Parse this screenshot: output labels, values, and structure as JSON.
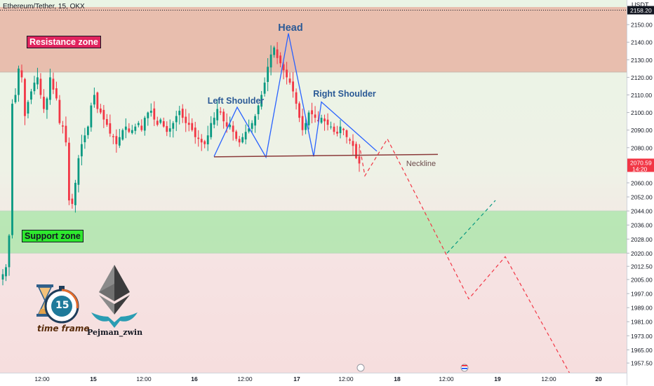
{
  "header": {
    "symbol": "Ethereum/Tether, 15, OKX",
    "currency": "USDT"
  },
  "zones": {
    "resistance_label": "Resistance zone",
    "support_label": "Support zone"
  },
  "annotations": {
    "head": "Head",
    "left_shoulder": "Left Shoulder",
    "right_shoulder": "Right Shoulder",
    "neckline": "Neckline"
  },
  "logos": {
    "timeframe_number": "15",
    "timeframe_text": "time frame",
    "author": "Pejman_zwin"
  },
  "current_price": {
    "value": "2070.59",
    "countdown": "14:20"
  },
  "colors": {
    "up": "#089981",
    "down": "#f23645",
    "resistance": "#e8b4a4",
    "support": "#a6e6a6",
    "pattern_line": "#2962ff",
    "neckline": "#8b3a3a",
    "projection_red": "#f23645",
    "projection_teal": "#089981"
  },
  "chart_data": {
    "type": "candlestick",
    "title": "Ethereum/Tether, 15, OKX",
    "ylabel": "USDT",
    "ylim": [
      1952,
      2164
    ],
    "price_ticks": [
      2158.2,
      2150,
      2140,
      2130,
      2120,
      2110,
      2100,
      2090,
      2080,
      2070.59,
      2060,
      2052,
      2044,
      2036,
      2028,
      2020,
      2012.5,
      2005,
      1997,
      1989,
      1981,
      1973,
      1965,
      1957.5
    ],
    "price_tick_labels": [
      "2158.20",
      "2150.00",
      "2140.00",
      "2130.00",
      "2120.00",
      "2110.00",
      "2100.00",
      "2090.00",
      "2080.00",
      "2070.59",
      "2060.00",
      "2052.00",
      "2044.00",
      "2036.00",
      "2028.00",
      "2020.00",
      "2012.50",
      "2005.00",
      "1997.00",
      "1989.00",
      "1981.00",
      "1973.00",
      "1965.00",
      "1957.50"
    ],
    "time_labels": [
      "12:00",
      "15",
      "12:00",
      "16",
      "12:00",
      "17",
      "12:00",
      "18",
      "12:00",
      "19",
      "12:00",
      "20"
    ],
    "resistance_zone": [
      2123,
      2160
    ],
    "support_zone": [
      2020,
      2044
    ],
    "neckline": [
      2075,
      2076
    ],
    "pattern": {
      "left_shoulder_high": 2103,
      "head_high": 2145,
      "right_shoulder_high": 2106
    },
    "projection": [
      2082,
      2064,
      2020,
      1994,
      2018,
      1950
    ],
    "alt_projection": [
      2020,
      2050
    ],
    "candle_path": [
      2008,
      2012,
      2030,
      2105,
      2110,
      2125,
      2120,
      2098,
      2106,
      2112,
      2117,
      2120,
      2110,
      2102,
      2108,
      2120,
      2113,
      2108,
      2094,
      2092,
      2083,
      2050,
      2048,
      2060,
      2074,
      2082,
      2087,
      2092,
      2104,
      2110,
      2102,
      2100,
      2096,
      2093,
      2088,
      2086,
      2082,
      2086,
      2090,
      2092,
      2089,
      2090,
      2092,
      2094,
      2090,
      2097,
      2100,
      2101,
      2096,
      2093,
      2096,
      2092,
      2089,
      2091,
      2094,
      2098,
      2101,
      2097,
      2094,
      2093,
      2090,
      2086,
      2085,
      2083,
      2082,
      2087,
      2094,
      2097,
      2102,
      2100,
      2095,
      2092,
      2093,
      2089,
      2085,
      2083,
      2086,
      2089,
      2091,
      2094,
      2098,
      2104,
      2110,
      2117,
      2126,
      2133,
      2137,
      2131,
      2128,
      2124,
      2120,
      2117,
      2112,
      2105,
      2097,
      2090,
      2094,
      2100,
      2099,
      2097,
      2095,
      2097,
      2095,
      2093,
      2092,
      2089,
      2088,
      2092,
      2090,
      2086,
      2084,
      2081,
      2074,
      2071
    ]
  }
}
